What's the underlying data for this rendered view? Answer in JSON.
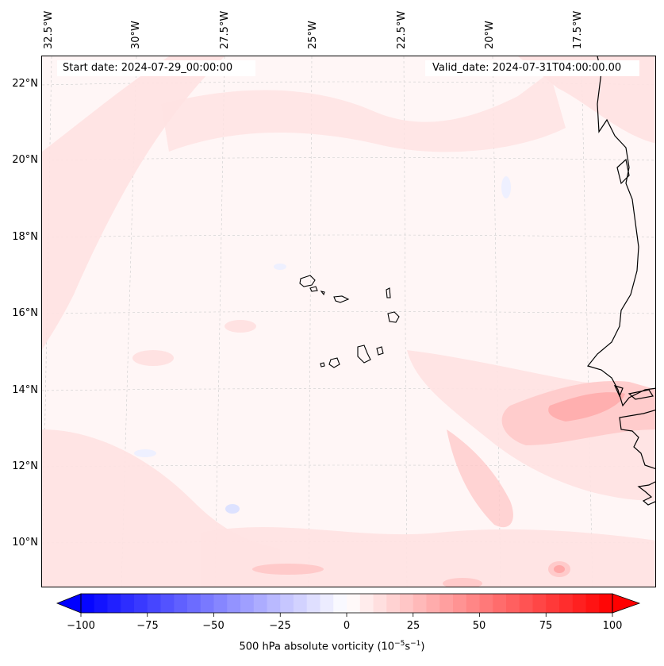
{
  "header": {
    "start_date": "Start date: 2024-07-29_00:00:00",
    "valid_date": "Valid_date: 2024-07-31T04:00:00.00"
  },
  "map": {
    "lon_labels": [
      "32.5°W",
      "30°W",
      "27.5°W",
      "25°W",
      "22.5°W",
      "20°W",
      "17.5°W"
    ],
    "lat_labels": [
      "22°N",
      "20°N",
      "18°N",
      "16°N",
      "14°N",
      "12°N",
      "10°N"
    ],
    "colors": {
      "background": "#fff6f6",
      "light_red": "#ffe2e2",
      "mid_red": "#ffcaca",
      "strong_red": "#ffa8a8",
      "light_blue": "#eef0ff",
      "coastline": "#000000",
      "gridline": "#cccccc"
    }
  },
  "colorbar": {
    "label_prefix": "500 hPa absolute vorticity (10",
    "label_exp1": "−5",
    "label_mid": "s",
    "label_exp2": "−1",
    "label_suffix": ")",
    "ticks": [
      "−100",
      "−75",
      "−50",
      "−25",
      "0",
      "25",
      "50",
      "75",
      "100"
    ],
    "min": -100,
    "max": 100,
    "step": 5,
    "cmap": "bwr",
    "extend": "both"
  }
}
